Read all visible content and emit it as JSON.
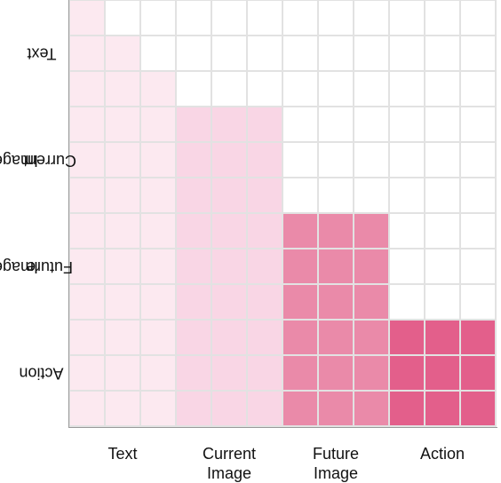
{
  "groups": [
    "Text",
    "Current Image",
    "Future Image",
    "Action"
  ],
  "col_labels": [
    {
      "line1": "Text",
      "line2": ""
    },
    {
      "line1": "Current",
      "line2": "Image"
    },
    {
      "line1": "Future",
      "line2": "Image"
    },
    {
      "line1": "Action",
      "line2": ""
    }
  ],
  "row_labels": [
    {
      "line1": "Text",
      "line2": ""
    },
    {
      "line1": "Current",
      "line2": "Image"
    },
    {
      "line1": "Future",
      "line2": "Image"
    },
    {
      "line1": "Action",
      "line2": ""
    }
  ],
  "tokens_per_group": 3,
  "mask_type": "causal",
  "colors": {
    "empty": "#ffffff",
    "gridline": "#e2e2e2",
    "axis": "#9a9a9a",
    "group_fill": [
      "#fce9f0",
      "#f9d6e5",
      "#ea8aa9",
      "#e35f8b"
    ]
  }
}
